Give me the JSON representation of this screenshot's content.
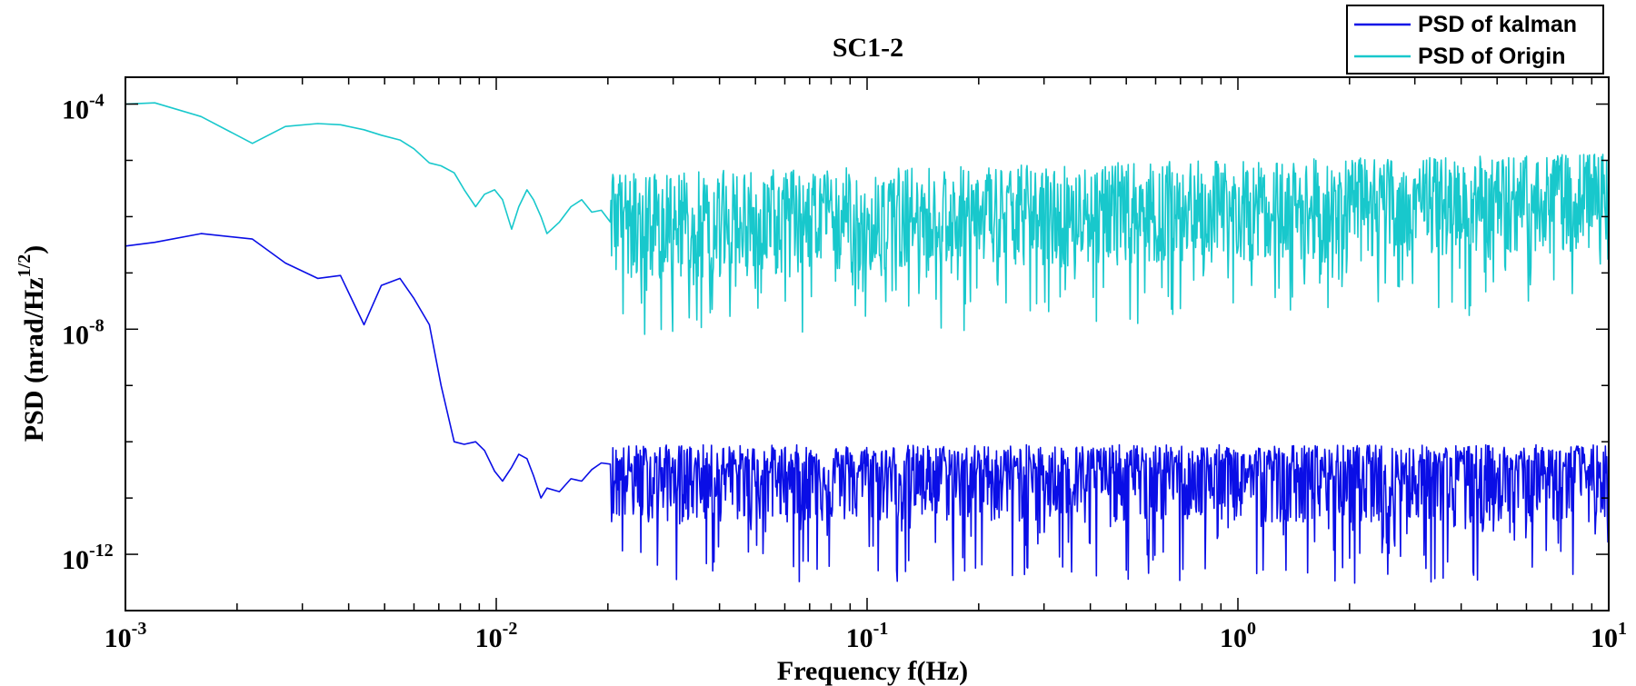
{
  "chart_data": {
    "type": "line",
    "title": "SC1-2",
    "xlabel": "Frequency f(Hz)",
    "ylabel_main": "PSD (nrad/Hz",
    "ylabel_sup": "1/2",
    "ylabel_close": ")",
    "xscale": "log",
    "yscale": "log",
    "xlim": [
      0.001,
      10
    ],
    "ylim": [
      1e-13,
      0.0003
    ],
    "grid": false,
    "legend_position": "top-right",
    "x_ticks": [
      {
        "base": "10",
        "exp": "-3",
        "value": 0.001
      },
      {
        "base": "10",
        "exp": "-2",
        "value": 0.01
      },
      {
        "base": "10",
        "exp": "-1",
        "value": 0.1
      },
      {
        "base": "10",
        "exp": "0",
        "value": 1
      },
      {
        "base": "10",
        "exp": "1",
        "value": 10
      }
    ],
    "y_ticks": [
      {
        "base": "10",
        "exp": "-4",
        "value": 0.0001
      },
      {
        "base": "10",
        "exp": "-8",
        "value": 1e-08
      },
      {
        "base": "10",
        "exp": "-12",
        "value": 1e-12
      }
    ],
    "series": [
      {
        "name": "PSD of kalman",
        "color": "#0a0ee6",
        "x": [
          0.001,
          0.0012,
          0.0016,
          0.0022,
          0.0027,
          0.0033,
          0.0038,
          0.0044,
          0.0049,
          0.0055,
          0.006,
          0.0066,
          0.0071,
          0.0077,
          0.0082,
          0.0088,
          0.0093,
          0.0099,
          0.0104,
          0.011,
          0.0115,
          0.0121,
          0.0126,
          0.0132,
          0.0137,
          0.0148,
          0.0159,
          0.017,
          0.0181,
          0.0192,
          0.0203
        ],
        "values": [
          3e-07,
          3.5e-07,
          5e-07,
          4e-07,
          1.5e-07,
          8e-08,
          9e-08,
          1.2e-08,
          6e-08,
          8e-08,
          3.5e-08,
          1.2e-08,
          1e-09,
          1e-10,
          9e-11,
          1e-10,
          7e-11,
          3e-11,
          2e-11,
          3.5e-11,
          6e-11,
          5e-11,
          2.5e-11,
          1e-11,
          1.5e-11,
          1.3e-11,
          2.2e-11,
          2e-11,
          3.2e-11,
          4.2e-11,
          4e-11
        ],
        "noise": {
          "x_start": 0.0203,
          "x_end": 10,
          "center": 3e-11,
          "center_end": 3e-11,
          "upper": 1e-10
        }
      },
      {
        "name": "PSD of Origin",
        "color": "#18c8cc",
        "x": [
          0.001,
          0.0012,
          0.0016,
          0.0022,
          0.0027,
          0.0033,
          0.0038,
          0.0044,
          0.0049,
          0.0055,
          0.006,
          0.0066,
          0.0071,
          0.0077,
          0.0082,
          0.0088,
          0.0093,
          0.0099,
          0.0104,
          0.011,
          0.0115,
          0.0121,
          0.0126,
          0.0132,
          0.0137,
          0.0148,
          0.0159,
          0.017,
          0.0181,
          0.0192,
          0.0203
        ],
        "values": [
          0.0001,
          0.000105,
          6e-05,
          2e-05,
          4e-05,
          4.5e-05,
          4.3e-05,
          3.5e-05,
          2.8e-05,
          2.3e-05,
          1.6e-05,
          9e-06,
          8e-06,
          6e-06,
          3e-06,
          1.5e-06,
          2.5e-06,
          3e-06,
          2e-06,
          6e-07,
          1.5e-06,
          3e-06,
          2e-06,
          1e-06,
          5e-07,
          8e-07,
          1.5e-06,
          2e-06,
          1.2e-06,
          1.3e-06,
          8e-07
        ],
        "noise": {
          "x_start": 0.0203,
          "x_end": 10,
          "center": 6e-07,
          "center_end": 2e-06,
          "upper": 8e-06
        }
      }
    ]
  }
}
